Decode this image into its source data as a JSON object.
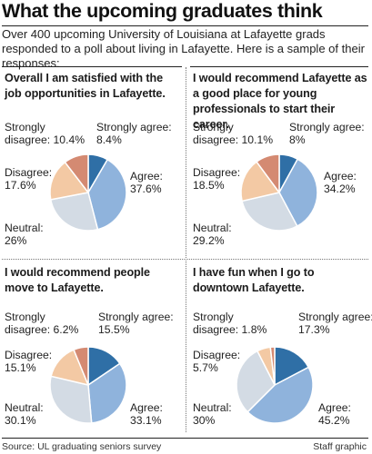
{
  "header": {
    "title": "What the upcoming graduates think",
    "intro": "Over 400 upcoming University of Louisiana at Lafayette grads responded to a poll about living in Lafayette. Here is a sample of their responses:"
  },
  "colors": {
    "strongly_agree": "#2f6fa6",
    "agree": "#8fb3dc",
    "neutral": "#d3dbe4",
    "disagree": "#f3c9a4",
    "strongly_disagree": "#d48a72"
  },
  "chart_data": [
    {
      "type": "pie",
      "title": "Overall I am satisfied with the job opportunities in Lafayette.",
      "slices": [
        {
          "label": "Strongly agree:",
          "value": 8.4,
          "display": "8.4%"
        },
        {
          "label": "Agree:",
          "value": 37.6,
          "display": "37.6%"
        },
        {
          "label": "Neutral:",
          "value": 26,
          "display": "26%"
        },
        {
          "label": "Disagree:",
          "value": 17.6,
          "display": "17.6%"
        },
        {
          "label": "Strongly disagree:",
          "value": 10.4,
          "display": "10.4%"
        }
      ]
    },
    {
      "type": "pie",
      "title": "I would recommend Lafayette as a good place for young professionals to start their career.",
      "slices": [
        {
          "label": "Strongly agree:",
          "value": 8,
          "display": "8%"
        },
        {
          "label": "Agree:",
          "value": 34.2,
          "display": "34.2%"
        },
        {
          "label": "Neutral:",
          "value": 29.2,
          "display": "29.2%"
        },
        {
          "label": "Disagree:",
          "value": 18.5,
          "display": "18.5%"
        },
        {
          "label": "Strongly disagree:",
          "value": 10.1,
          "display": "10.1%"
        }
      ]
    },
    {
      "type": "pie",
      "title": "I would recommend people move to Lafayette.",
      "slices": [
        {
          "label": "Strongly agree:",
          "value": 15.5,
          "display": "15.5%"
        },
        {
          "label": "Agree:",
          "value": 33.1,
          "display": "33.1%"
        },
        {
          "label": "Neutral:",
          "value": 30.1,
          "display": "30.1%"
        },
        {
          "label": "Disagree:",
          "value": 15.1,
          "display": "15.1%"
        },
        {
          "label": "Strongly disagree:",
          "value": 6.2,
          "display": "6.2%"
        }
      ]
    },
    {
      "type": "pie",
      "title": "I have fun when I go to downtown Lafayette.",
      "slices": [
        {
          "label": "Strongly agree:",
          "value": 17.3,
          "display": "17.3%"
        },
        {
          "label": "Agree:",
          "value": 45.2,
          "display": "45.2%"
        },
        {
          "label": "Neutral:",
          "value": 30,
          "display": "30%"
        },
        {
          "label": "Disagree:",
          "value": 5.7,
          "display": "5.7%"
        },
        {
          "label": "Strongly disagree:",
          "value": 1.8,
          "display": "1.8%"
        }
      ]
    }
  ],
  "footer": {
    "source": "Source: UL graduating seniors survey",
    "credit": "Staff graphic"
  }
}
